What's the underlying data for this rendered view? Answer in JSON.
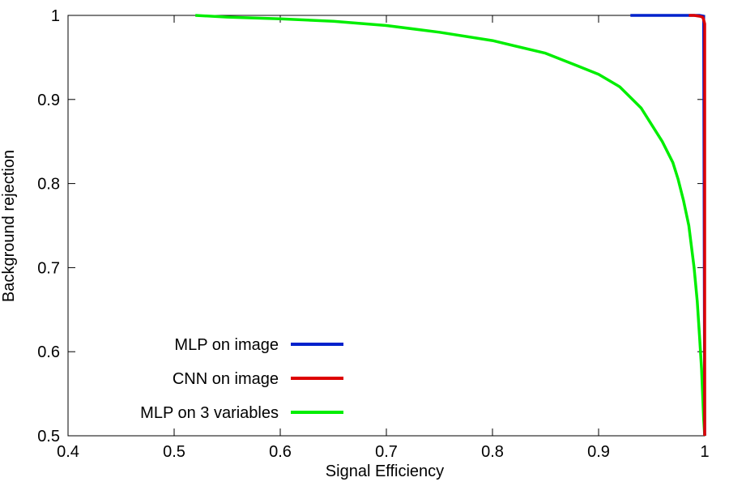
{
  "chart_data": {
    "type": "line",
    "title": "",
    "xlabel": "Signal Efficiency",
    "ylabel": "Background rejection",
    "xlim": [
      0.4,
      1.0
    ],
    "ylim": [
      0.5,
      1.0
    ],
    "xticks": [
      0.4,
      0.5,
      0.6,
      0.7,
      0.8,
      0.9,
      1.0
    ],
    "xtick_labels": [
      "0.4",
      "0.5",
      "0.6",
      "0.7",
      "0.8",
      "0.9",
      "1"
    ],
    "yticks": [
      0.5,
      0.6,
      0.7,
      0.8,
      0.9,
      1.0
    ],
    "ytick_labels": [
      "0.5",
      "0.6",
      "0.7",
      "0.8",
      "0.9",
      "1"
    ],
    "grid": false,
    "legend_position": "bottom-left",
    "series": [
      {
        "name": "MLP on image",
        "color": "#0022cc",
        "x": [
          0.93,
          0.95,
          0.97,
          0.985,
          0.995,
          0.999,
          1.0
        ],
        "y": [
          1.0,
          1.0,
          1.0,
          1.0,
          1.0,
          0.999,
          0.5
        ]
      },
      {
        "name": "CNN on image",
        "color": "#dd0000",
        "x": [
          0.985,
          0.99,
          0.995,
          0.998,
          0.999,
          1.0,
          1.0
        ],
        "y": [
          1.0,
          1.0,
          0.999,
          0.998,
          0.995,
          0.99,
          0.5
        ]
      },
      {
        "name": "MLP on 3 variables",
        "color": "#00ee00",
        "x": [
          0.52,
          0.55,
          0.6,
          0.65,
          0.7,
          0.75,
          0.8,
          0.85,
          0.88,
          0.9,
          0.92,
          0.94,
          0.95,
          0.96,
          0.97,
          0.975,
          0.98,
          0.985,
          0.99,
          0.993,
          0.995,
          0.997,
          0.998,
          0.999,
          1.0
        ],
        "y": [
          1.0,
          0.998,
          0.996,
          0.993,
          0.988,
          0.98,
          0.97,
          0.955,
          0.94,
          0.93,
          0.915,
          0.89,
          0.87,
          0.85,
          0.825,
          0.805,
          0.78,
          0.75,
          0.7,
          0.66,
          0.62,
          0.58,
          0.55,
          0.52,
          0.5
        ]
      }
    ]
  }
}
